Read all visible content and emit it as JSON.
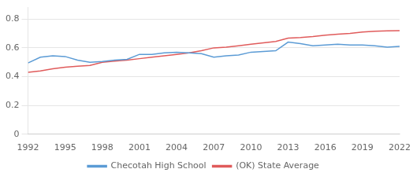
{
  "chart_data": {
    "type": "line",
    "x": [
      1992,
      1993,
      1994,
      1995,
      1996,
      1997,
      1998,
      1999,
      2000,
      2001,
      2002,
      2003,
      2004,
      2005,
      2006,
      2007,
      2008,
      2009,
      2010,
      2011,
      2012,
      2013,
      2014,
      2015,
      2016,
      2017,
      2018,
      2019,
      2020,
      2021,
      2022
    ],
    "series": [
      {
        "name": "Checotah High School",
        "color": "#5b9bd5",
        "values": [
          0.495,
          0.535,
          0.545,
          0.54,
          0.515,
          0.5,
          0.505,
          0.515,
          0.52,
          0.555,
          0.555,
          0.565,
          0.57,
          0.565,
          0.56,
          0.535,
          0.545,
          0.55,
          0.57,
          0.575,
          0.58,
          0.64,
          0.63,
          0.615,
          0.62,
          0.625,
          0.62,
          0.62,
          0.615,
          0.605,
          0.61
        ]
      },
      {
        "name": "(OK) State Average",
        "color": "#e05b5b",
        "values": [
          0.43,
          0.44,
          0.455,
          0.465,
          0.472,
          0.478,
          0.5,
          0.508,
          0.515,
          0.525,
          0.535,
          0.545,
          0.555,
          0.565,
          0.58,
          0.6,
          0.605,
          0.615,
          0.625,
          0.635,
          0.645,
          0.668,
          0.672,
          0.678,
          0.688,
          0.695,
          0.7,
          0.71,
          0.715,
          0.718,
          0.72
        ]
      }
    ],
    "xlim": [
      1992,
      2022
    ],
    "xticks": [
      1992,
      1995,
      1998,
      2001,
      2004,
      2007,
      2010,
      2013,
      2016,
      2019,
      2022
    ],
    "ylim": [
      0,
      0.88
    ],
    "yticks": [
      0,
      0.2,
      0.4,
      0.6,
      0.8
    ],
    "grid": true,
    "legend": "bottom"
  }
}
